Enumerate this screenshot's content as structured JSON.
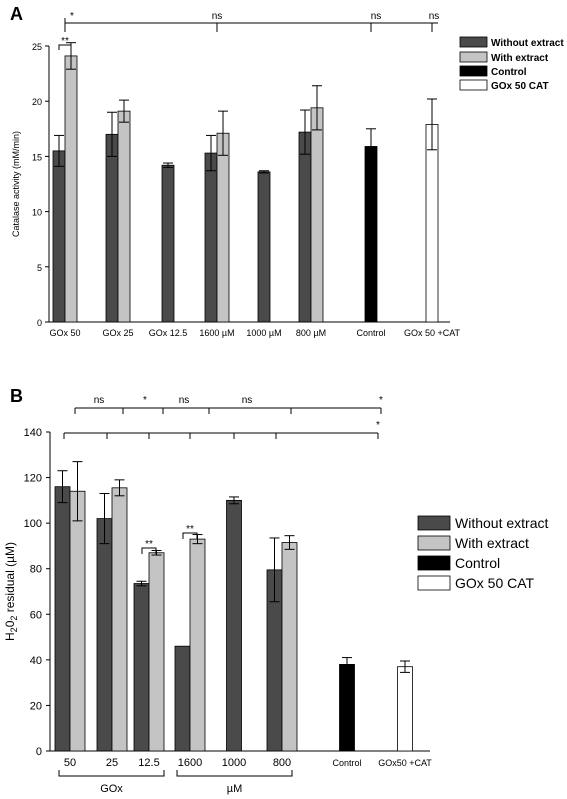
{
  "colors": {
    "without": "#4a4a4a",
    "with": "#c4c4c4",
    "control": "#000000",
    "cat": "#ffffff"
  },
  "chart_data": [
    {
      "panel": "A",
      "type": "bar",
      "ylabel": "Catalase activity (mM/min)",
      "ylim": [
        0,
        25
      ],
      "yticks": [
        0,
        5,
        10,
        15,
        20,
        25
      ],
      "legend_position": "top-right",
      "legend": [
        "Without extract",
        "With extract",
        "Control",
        "GOx 50 CAT"
      ],
      "groups": [
        {
          "label": "GOx 50",
          "bars": [
            {
              "series": "without",
              "value": 15.5,
              "err": 1.4
            },
            {
              "series": "with",
              "value": 24.1,
              "err": 1.2
            }
          ]
        },
        {
          "label": "GOx 25",
          "bars": [
            {
              "series": "without",
              "value": 17.0,
              "err": 2.0
            },
            {
              "series": "with",
              "value": 19.1,
              "err": 1.0
            }
          ]
        },
        {
          "label": "GOx 12.5",
          "bars": [
            {
              "series": "without",
              "value": 14.2,
              "err": 0.2
            }
          ]
        },
        {
          "label": "1600 µM",
          "bars": [
            {
              "series": "without",
              "value": 15.3,
              "err": 1.6
            },
            {
              "series": "with",
              "value": 17.1,
              "err": 2.0
            }
          ]
        },
        {
          "label": "1000 µM",
          "bars": [
            {
              "series": "without",
              "value": 13.6,
              "err": 0.1
            }
          ]
        },
        {
          "label": "800 µM",
          "bars": [
            {
              "series": "without",
              "value": 17.2,
              "err": 2.0
            },
            {
              "series": "with",
              "value": 19.4,
              "err": 2.0
            }
          ]
        },
        {
          "label": "Control",
          "bars": [
            {
              "series": "control",
              "value": 15.9,
              "err": 1.6
            }
          ]
        },
        {
          "label": "GOx 50 +CAT",
          "bars": [
            {
              "series": "cat",
              "value": 17.9,
              "err": 2.3
            }
          ]
        }
      ],
      "significance": {
        "pair": {
          "group": 0,
          "label": "**"
        },
        "top_line": {
          "from_group": 0,
          "to_group": 7,
          "labels": [
            "*",
            "ns",
            "ns",
            "ns"
          ],
          "anchor_groups": [
            0,
            3,
            6,
            7
          ]
        }
      }
    },
    {
      "panel": "B",
      "type": "bar",
      "ylabel": "H202 residual (µM)",
      "ylabel_main": "H",
      "ylabel_sub": "2",
      "ylabel_mid": "0",
      "ylabel_sub2": "2",
      "ylabel_tail": " residual (µM)",
      "ylim": [
        0,
        140
      ],
      "yticks": [
        0,
        20,
        40,
        60,
        80,
        100,
        120,
        140
      ],
      "legend_position": "right",
      "legend": [
        "Without extract",
        "With extract",
        "Control",
        "GOx 50 CAT"
      ],
      "groups": [
        {
          "label": "50",
          "bars": [
            {
              "series": "without",
              "value": 116,
              "err": 7
            },
            {
              "series": "with",
              "value": 114,
              "err": 13
            }
          ]
        },
        {
          "label": "25",
          "bars": [
            {
              "series": "without",
              "value": 102,
              "err": 11
            },
            {
              "series": "with",
              "value": 115.5,
              "err": 3.5
            }
          ]
        },
        {
          "label": "12.5",
          "bars": [
            {
              "series": "without",
              "value": 73.5,
              "err": 1
            },
            {
              "series": "with",
              "value": 87,
              "err": 1
            }
          ]
        },
        {
          "label": "1600",
          "bars": [
            {
              "series": "without",
              "value": 46,
              "err": 0
            },
            {
              "series": "with",
              "value": 93,
              "err": 2
            }
          ]
        },
        {
          "label": "1000",
          "bars": [
            {
              "series": "without",
              "value": 110,
              "err": 1.5
            }
          ]
        },
        {
          "label": "800",
          "bars": [
            {
              "series": "without",
              "value": 79.5,
              "err": 14
            },
            {
              "series": "with",
              "value": 91.5,
              "err": 3
            }
          ]
        },
        {
          "label": "Control",
          "bars": [
            {
              "series": "control",
              "value": 38,
              "err": 3
            }
          ]
        },
        {
          "label": "GOx50 +CAT",
          "bars": [
            {
              "series": "cat",
              "value": 37,
              "err": 2.5
            }
          ]
        }
      ],
      "group_labels": [
        {
          "text": "GOx",
          "from_group": 0,
          "to_group": 2
        },
        {
          "text": "µM",
          "from_group": 3,
          "to_group": 5
        }
      ],
      "significance": {
        "pairs": [
          {
            "group": 2,
            "label": "**"
          },
          {
            "group": 3,
            "label": "**"
          }
        ],
        "line1": {
          "labels": [
            "ns",
            "*",
            "ns",
            "ns",
            "*"
          ]
        },
        "line2": {
          "labels": [
            "*"
          ]
        }
      }
    }
  ]
}
